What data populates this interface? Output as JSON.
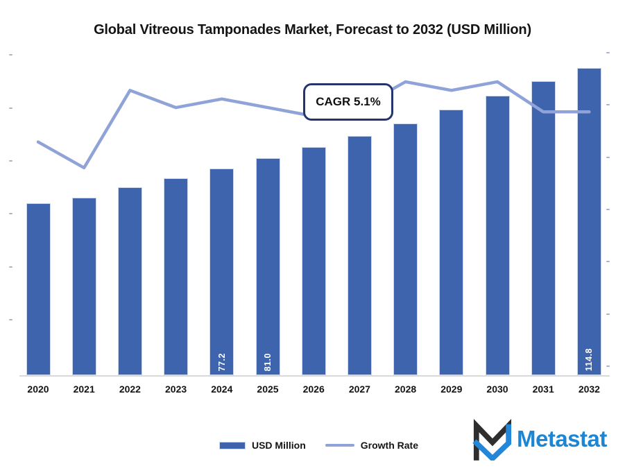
{
  "title": "Global Vitreous Tamponades Market, Forecast to 2032 (USD Million)",
  "annotation": {
    "text": "CAGR 5.1%"
  },
  "legend": {
    "items": [
      {
        "label": "USD Million",
        "type": "bar"
      },
      {
        "label": "Growth Rate",
        "type": "line"
      }
    ]
  },
  "brand": {
    "name": "Metastat",
    "wordmark_color": "#1c86d4",
    "mark_black": "#2e2e2e",
    "mark_blue": "#2287d9"
  },
  "colors": {
    "bar": "#3e64ae",
    "line": "#8fa3d8",
    "axis_line": "#d9d9d9",
    "tick": "#a9b3c9",
    "callout_border": "#24356b"
  },
  "chart_data": {
    "type": "bar",
    "combo_with_line": true,
    "title": "Global Vitreous Tamponades Market, Forecast to 2032 (USD Million)",
    "annotation": "CAGR 5.1%",
    "categories": [
      "2020",
      "2021",
      "2022",
      "2023",
      "2024",
      "2025",
      "2026",
      "2027",
      "2028",
      "2029",
      "2030",
      "2031",
      "2032"
    ],
    "series": [
      {
        "name": "USD Million",
        "type": "bar",
        "axis": "left",
        "color": "#3e64ae",
        "values": [
          64.2,
          66.3,
          70.2,
          73.6,
          77.2,
          81.0,
          85.2,
          89.4,
          94.0,
          99.2,
          104.4,
          109.8,
          114.8
        ],
        "data_labels": [
          "",
          "",
          "",
          "",
          "77.2",
          "81.0",
          "",
          "",
          "",
          "",
          "",
          "",
          "114.8"
        ]
      },
      {
        "name": "Growth Rate",
        "type": "line",
        "axis": "right",
        "color": "#8fa3d8",
        "values": [
          4.4,
          3.8,
          5.6,
          5.2,
          5.4,
          5.2,
          5.0,
          5.2,
          5.8,
          5.6,
          5.8,
          5.1,
          5.1
        ]
      }
    ],
    "left_axis": {
      "labels_visible": false,
      "tick_count": 6,
      "estimated_range": [
        0,
        120
      ]
    },
    "right_axis": {
      "labels_visible": false,
      "tick_count": 7
    },
    "grid": false,
    "legend_position": "bottom"
  }
}
